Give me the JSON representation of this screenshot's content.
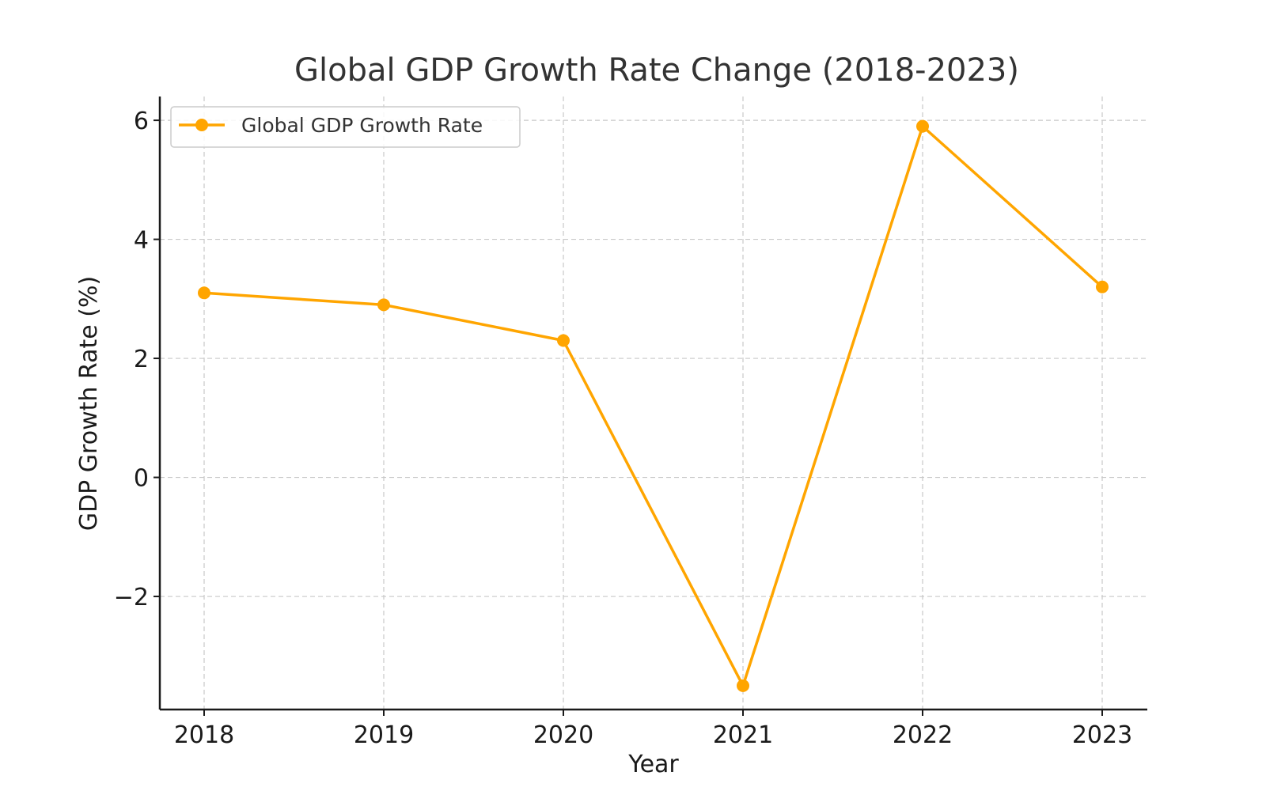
{
  "chart_data": {
    "type": "line",
    "title": "Global GDP Growth Rate Change (2018-2023)",
    "xlabel": "Year",
    "ylabel": "GDP Growth Rate (%)",
    "categories": [
      "2018",
      "2019",
      "2020",
      "2021",
      "2022",
      "2023"
    ],
    "series": [
      {
        "name": "Global GDP Growth Rate",
        "values": [
          3.1,
          2.9,
          2.3,
          -3.5,
          5.9,
          3.2
        ],
        "color": "#FFA500",
        "marker": "circle"
      }
    ],
    "yticks": [
      -2,
      0,
      2,
      4,
      6
    ],
    "ytick_labels": [
      "−2",
      "0",
      "2",
      "4",
      "6"
    ],
    "ylim": [
      -3.9,
      6.4
    ],
    "grid": true,
    "legend_position": "top-left"
  }
}
